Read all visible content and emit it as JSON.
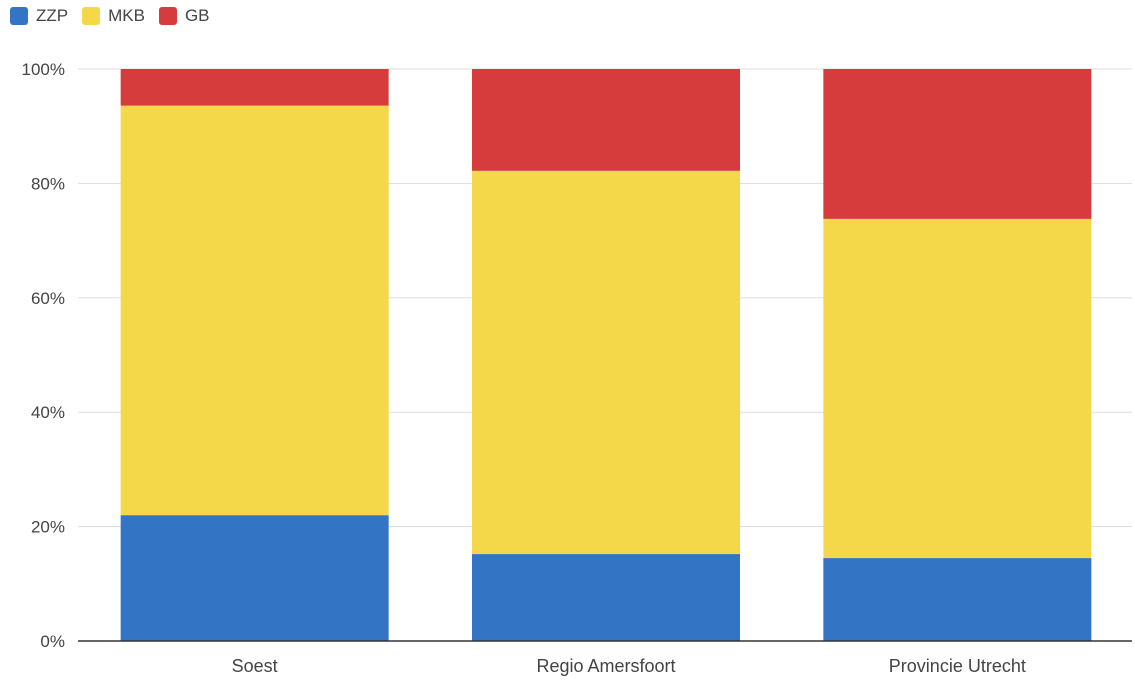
{
  "colors": {
    "ZZP": "#3375c4",
    "MKB": "#f4d84a",
    "GB": "#d63c3c",
    "grid": "#dddddd",
    "axis": "#333333",
    "text": "#444444"
  },
  "chart_data": {
    "type": "bar",
    "stacked": true,
    "categories": [
      "Soest",
      "Regio Amersfoort",
      "Provincie Utrecht"
    ],
    "series": [
      {
        "name": "ZZP",
        "values": [
          22,
          15.2,
          14.5
        ]
      },
      {
        "name": "MKB",
        "values": [
          71.6,
          67,
          59.3
        ]
      },
      {
        "name": "GB",
        "values": [
          6.4,
          17.8,
          26.2
        ]
      }
    ],
    "ylim": [
      0,
      100
    ],
    "yticks": [
      0,
      20,
      40,
      60,
      80,
      100
    ],
    "ytick_labels": [
      "0%",
      "20%",
      "40%",
      "60%",
      "80%",
      "100%"
    ],
    "legend_position": "top-left",
    "grid": true
  }
}
